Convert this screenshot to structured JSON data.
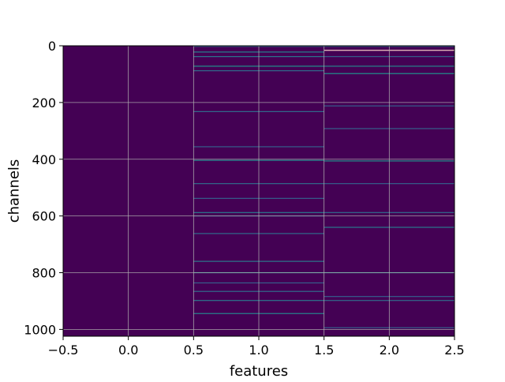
{
  "chart_data": {
    "type": "heatmap",
    "title": "",
    "xlabel": "features",
    "ylabel": "channels",
    "x_columns": [
      0,
      1,
      2
    ],
    "xlim": [
      -0.5,
      2.5
    ],
    "ylim": [
      1024,
      0
    ],
    "y_inverted": true,
    "n_rows": 1024,
    "xticks": [
      -0.5,
      0.0,
      0.5,
      1.0,
      1.5,
      2.0,
      2.5
    ],
    "xtick_labels": [
      "−0.5",
      "0.0",
      "0.5",
      "1.0",
      "1.5",
      "2.0",
      "2.5"
    ],
    "yticks": [
      0,
      200,
      400,
      600,
      800,
      1000
    ],
    "ytick_labels": [
      "0",
      "200",
      "400",
      "600",
      "800",
      "1000"
    ],
    "grid": true,
    "colormap": "viridis",
    "background_color": "#440154",
    "bright_rows": [
      {
        "row": 2,
        "column": 1,
        "value": 0.35
      },
      {
        "row": 2,
        "column": 2,
        "value": 0.35
      },
      {
        "row": 16,
        "column": 2,
        "value": 1.0
      },
      {
        "row": 22,
        "column": 1,
        "value": 0.45
      },
      {
        "row": 38,
        "column": 1,
        "value": 0.4
      },
      {
        "row": 38,
        "column": 2,
        "value": 0.3
      },
      {
        "row": 72,
        "column": 1,
        "value": 0.5
      },
      {
        "row": 72,
        "column": 2,
        "value": 0.45
      },
      {
        "row": 88,
        "column": 1,
        "value": 0.35
      },
      {
        "row": 98,
        "column": 2,
        "value": 0.5
      },
      {
        "row": 212,
        "column": 2,
        "value": 0.3
      },
      {
        "row": 232,
        "column": 1,
        "value": 0.35
      },
      {
        "row": 292,
        "column": 2,
        "value": 0.3
      },
      {
        "row": 356,
        "column": 1,
        "value": 0.3
      },
      {
        "row": 404,
        "column": 1,
        "value": 0.45
      },
      {
        "row": 406,
        "column": 2,
        "value": 0.5
      },
      {
        "row": 486,
        "column": 1,
        "value": 0.35
      },
      {
        "row": 486,
        "column": 2,
        "value": 0.3
      },
      {
        "row": 538,
        "column": 1,
        "value": 0.3
      },
      {
        "row": 588,
        "column": 1,
        "value": 0.4
      },
      {
        "row": 588,
        "column": 2,
        "value": 0.35
      },
      {
        "row": 600,
        "column": 1,
        "value": 0.3
      },
      {
        "row": 640,
        "column": 2,
        "value": 0.4
      },
      {
        "row": 662,
        "column": 1,
        "value": 0.35
      },
      {
        "row": 760,
        "column": 1,
        "value": 0.4
      },
      {
        "row": 800,
        "column": 1,
        "value": 0.5
      },
      {
        "row": 800,
        "column": 2,
        "value": 0.5
      },
      {
        "row": 836,
        "column": 1,
        "value": 0.3
      },
      {
        "row": 866,
        "column": 1,
        "value": 0.35
      },
      {
        "row": 884,
        "column": 2,
        "value": 0.3
      },
      {
        "row": 898,
        "column": 1,
        "value": 0.4
      },
      {
        "row": 898,
        "column": 2,
        "value": 0.35
      },
      {
        "row": 944,
        "column": 1,
        "value": 0.45
      },
      {
        "row": 994,
        "column": 2,
        "value": 0.3
      }
    ]
  }
}
